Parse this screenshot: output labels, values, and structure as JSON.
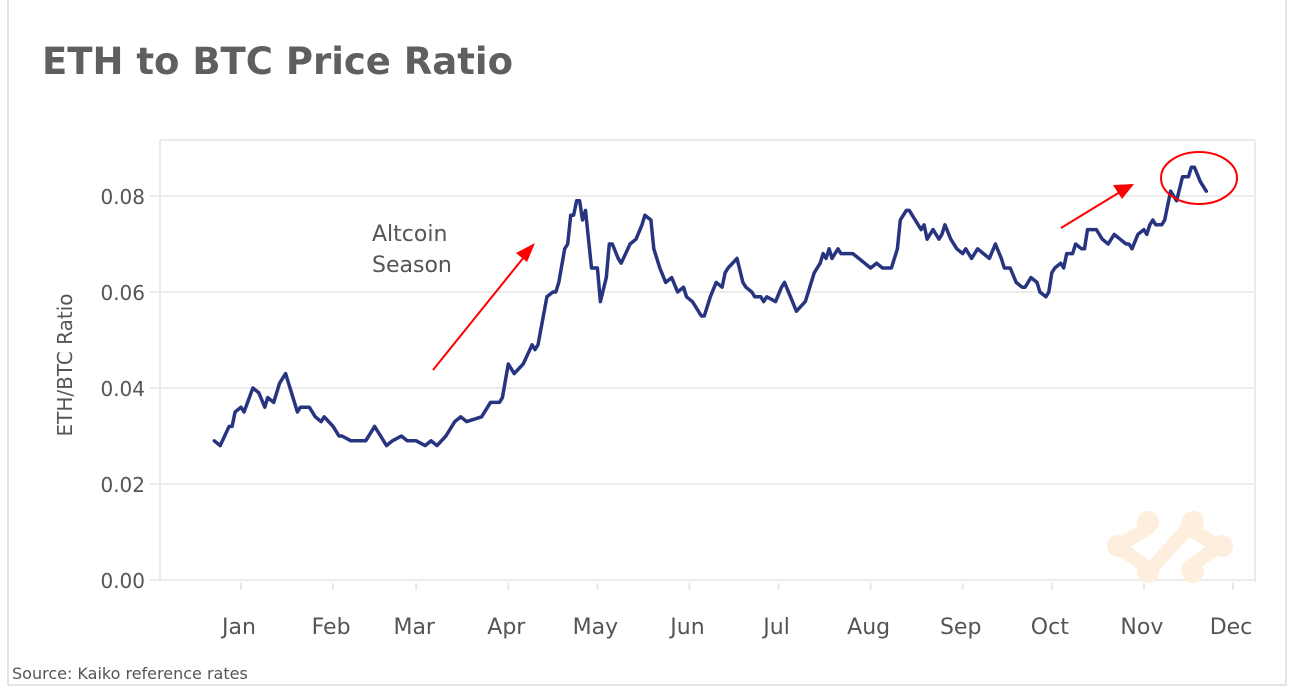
{
  "title": "ETH to BTC Price Ratio",
  "source": "Source: Kaiko reference rates",
  "annotation": {
    "line1": "Altcoin",
    "line2": "Season"
  },
  "colors": {
    "line": "#27347f",
    "annotation": "#ff0000",
    "grid": "#ececec",
    "watermark": "#fdeedd"
  },
  "watermark_icon": "kaiko-logo-icon",
  "chart_data": {
    "type": "line",
    "title": "ETH to BTC Price Ratio",
    "ylabel": "ETH/BTC Ratio",
    "xlabel": "",
    "ylim": [
      0,
      0.09
    ],
    "yticks": [
      "0.00",
      "0.02",
      "0.04",
      "0.06",
      "0.08"
    ],
    "ytick_values": [
      0,
      0.02,
      0.04,
      0.06,
      0.08
    ],
    "xticks": [
      "Jan",
      "Feb",
      "Mar",
      "Apr",
      "May",
      "Jun",
      "Jul",
      "Aug",
      "Sep",
      "Oct",
      "Nov",
      "Dec"
    ],
    "grid": "horizontal",
    "series": [
      {
        "points": [
          [
            "Dec 23",
            0.029
          ],
          [
            "Dec 25",
            0.028
          ],
          [
            "Dec 28",
            0.032
          ],
          [
            "Dec 29",
            0.032
          ],
          [
            "Dec 30",
            0.035
          ],
          [
            "Jan 1",
            0.036
          ],
          [
            "Jan 2",
            0.035
          ],
          [
            "Jan 5",
            0.04
          ],
          [
            "Jan 7",
            0.039
          ],
          [
            "Jan 9",
            0.036
          ],
          [
            "Jan 10",
            0.038
          ],
          [
            "Jan 12",
            0.037
          ],
          [
            "Jan 14",
            0.041
          ],
          [
            "Jan 16",
            0.043
          ],
          [
            "Jan 18",
            0.039
          ],
          [
            "Jan 20",
            0.035
          ],
          [
            "Jan 21",
            0.036
          ],
          [
            "Jan 24",
            0.036
          ],
          [
            "Jan 26",
            0.034
          ],
          [
            "Jan 28",
            0.033
          ],
          [
            "Jan 29",
            0.034
          ],
          [
            "Feb 1",
            0.032
          ],
          [
            "Feb 3",
            0.03
          ],
          [
            "Feb 4",
            0.03
          ],
          [
            "Feb 7",
            0.029
          ],
          [
            "Feb 10",
            0.029
          ],
          [
            "Feb 12",
            0.029
          ],
          [
            "Feb 14",
            0.031
          ],
          [
            "Feb 15",
            0.032
          ],
          [
            "Feb 17",
            0.03
          ],
          [
            "Feb 19",
            0.028
          ],
          [
            "Feb 21",
            0.029
          ],
          [
            "Feb 24",
            0.03
          ],
          [
            "Feb 26",
            0.029
          ],
          [
            "Mar 1",
            0.029
          ],
          [
            "Mar 4",
            0.028
          ],
          [
            "Mar 6",
            0.029
          ],
          [
            "Mar 8",
            0.028
          ],
          [
            "Mar 11",
            0.03
          ],
          [
            "Mar 14",
            0.033
          ],
          [
            "Mar 16",
            0.034
          ],
          [
            "Mar 18",
            0.033
          ],
          [
            "Mar 23",
            0.034
          ],
          [
            "Mar 26",
            0.037
          ],
          [
            "Mar 29",
            0.037
          ],
          [
            "Mar 30",
            0.038
          ],
          [
            "Apr 1",
            0.045
          ],
          [
            "Apr 3",
            0.043
          ],
          [
            "Apr 6",
            0.045
          ],
          [
            "Apr 9",
            0.049
          ],
          [
            "Apr 10",
            0.048
          ],
          [
            "Apr 11",
            0.049
          ],
          [
            "Apr 14",
            0.059
          ],
          [
            "Apr 16",
            0.06
          ],
          [
            "Apr 17",
            0.06
          ],
          [
            "Apr 18",
            0.062
          ],
          [
            "Apr 20",
            0.069
          ],
          [
            "Apr 21",
            0.07
          ],
          [
            "Apr 22",
            0.076
          ],
          [
            "Apr 23",
            0.076
          ],
          [
            "Apr 24",
            0.079
          ],
          [
            "Apr 25",
            0.079
          ],
          [
            "Apr 26",
            0.075
          ],
          [
            "Apr 27",
            0.077
          ],
          [
            "Apr 29",
            0.065
          ],
          [
            "May 1",
            0.065
          ],
          [
            "May 2",
            0.058
          ],
          [
            "May 4",
            0.063
          ],
          [
            "May 5",
            0.07
          ],
          [
            "May 6",
            0.07
          ],
          [
            "May 8",
            0.067
          ],
          [
            "May 9",
            0.066
          ],
          [
            "May 12",
            0.07
          ],
          [
            "May 14",
            0.071
          ],
          [
            "May 16",
            0.074
          ],
          [
            "May 17",
            0.076
          ],
          [
            "May 19",
            0.075
          ],
          [
            "May 20",
            0.069
          ],
          [
            "May 22",
            0.065
          ],
          [
            "May 24",
            0.062
          ],
          [
            "May 26",
            0.063
          ],
          [
            "May 28",
            0.06
          ],
          [
            "May 30",
            0.061
          ],
          [
            "May 31",
            0.059
          ],
          [
            "Jun 2",
            0.058
          ],
          [
            "Jun 5",
            0.055
          ],
          [
            "Jun 6",
            0.055
          ],
          [
            "Jun 8",
            0.059
          ],
          [
            "Jun 10",
            0.062
          ],
          [
            "Jun 12",
            0.061
          ],
          [
            "Jun 13",
            0.064
          ],
          [
            "Jun 14",
            0.065
          ],
          [
            "Jun 17",
            0.067
          ],
          [
            "Jun 19",
            0.062
          ],
          [
            "Jun 20",
            0.061
          ],
          [
            "Jun 22",
            0.06
          ],
          [
            "Jun 23",
            0.059
          ],
          [
            "Jun 25",
            0.059
          ],
          [
            "Jun 26",
            0.058
          ],
          [
            "Jun 27",
            0.059
          ],
          [
            "Jun 30",
            0.058
          ],
          [
            "Jul 2",
            0.061
          ],
          [
            "Jul 3",
            0.062
          ],
          [
            "Jul 5",
            0.059
          ],
          [
            "Jul 7",
            0.056
          ],
          [
            "Jul 10",
            0.058
          ],
          [
            "Jul 11",
            0.06
          ],
          [
            "Jul 13",
            0.064
          ],
          [
            "Jul 15",
            0.066
          ],
          [
            "Jul 16",
            0.068
          ],
          [
            "Jul 17",
            0.067
          ],
          [
            "Jul 18",
            0.069
          ],
          [
            "Jul 19",
            0.067
          ],
          [
            "Jul 21",
            0.069
          ],
          [
            "Jul 22",
            0.068
          ],
          [
            "Jul 24",
            0.068
          ],
          [
            "Jul 26",
            0.068
          ],
          [
            "Jul 28",
            0.067
          ],
          [
            "Jul 30",
            0.066
          ],
          [
            "Aug 1",
            0.065
          ],
          [
            "Aug 3",
            0.066
          ],
          [
            "Aug 5",
            0.065
          ],
          [
            "Aug 6",
            0.065
          ],
          [
            "Aug 8",
            0.065
          ],
          [
            "Aug 10",
            0.069
          ],
          [
            "Aug 11",
            0.075
          ],
          [
            "Aug 13",
            0.077
          ],
          [
            "Aug 14",
            0.077
          ],
          [
            "Aug 16",
            0.075
          ],
          [
            "Aug 18",
            0.073
          ],
          [
            "Aug 19",
            0.074
          ],
          [
            "Aug 20",
            0.071
          ],
          [
            "Aug 22",
            0.073
          ],
          [
            "Aug 24",
            0.071
          ],
          [
            "Aug 25",
            0.072
          ],
          [
            "Aug 26",
            0.074
          ],
          [
            "Aug 28",
            0.071
          ],
          [
            "Aug 30",
            0.069
          ],
          [
            "Sep 1",
            0.068
          ],
          [
            "Sep 2",
            0.069
          ],
          [
            "Sep 4",
            0.067
          ],
          [
            "Sep 6",
            0.069
          ],
          [
            "Sep 8",
            0.068
          ],
          [
            "Sep 10",
            0.067
          ],
          [
            "Sep 12",
            0.07
          ],
          [
            "Sep 14",
            0.067
          ],
          [
            "Sep 15",
            0.065
          ],
          [
            "Sep 17",
            0.065
          ],
          [
            "Sep 19",
            0.062
          ],
          [
            "Sep 21",
            0.061
          ],
          [
            "Sep 22",
            0.061
          ],
          [
            "Sep 24",
            0.063
          ],
          [
            "Sep 26",
            0.062
          ],
          [
            "Sep 27",
            0.06
          ],
          [
            "Sep 29",
            0.059
          ],
          [
            "Sep 30",
            0.06
          ],
          [
            "Oct 1",
            0.064
          ],
          [
            "Oct 2",
            0.065
          ],
          [
            "Oct 4",
            0.066
          ],
          [
            "Oct 5",
            0.065
          ],
          [
            "Oct 6",
            0.068
          ],
          [
            "Oct 8",
            0.068
          ],
          [
            "Oct 9",
            0.07
          ],
          [
            "Oct 11",
            0.069
          ],
          [
            "Oct 12",
            0.069
          ],
          [
            "Oct 13",
            0.073
          ],
          [
            "Oct 16",
            0.073
          ],
          [
            "Oct 17",
            0.072
          ],
          [
            "Oct 18",
            0.071
          ],
          [
            "Oct 20",
            0.07
          ],
          [
            "Oct 22",
            0.072
          ],
          [
            "Oct 24",
            0.071
          ],
          [
            "Oct 26",
            0.07
          ],
          [
            "Oct 27",
            0.07
          ],
          [
            "Oct 28",
            0.069
          ],
          [
            "Oct 30",
            0.072
          ],
          [
            "Nov 1",
            0.073
          ],
          [
            "Nov 2",
            0.072
          ],
          [
            "Nov 3",
            0.074
          ],
          [
            "Nov 4",
            0.075
          ],
          [
            "Nov 5",
            0.074
          ],
          [
            "Nov 7",
            0.074
          ],
          [
            "Nov 8",
            0.075
          ],
          [
            "Nov 10",
            0.081
          ],
          [
            "Nov 11",
            0.08
          ],
          [
            "Nov 12",
            0.079
          ],
          [
            "Nov 14",
            0.084
          ],
          [
            "Nov 16",
            0.084
          ],
          [
            "Nov 17",
            0.086
          ],
          [
            "Nov 18",
            0.086
          ],
          [
            "Nov 20",
            0.083
          ],
          [
            "Nov 22",
            0.081
          ]
        ]
      }
    ]
  }
}
